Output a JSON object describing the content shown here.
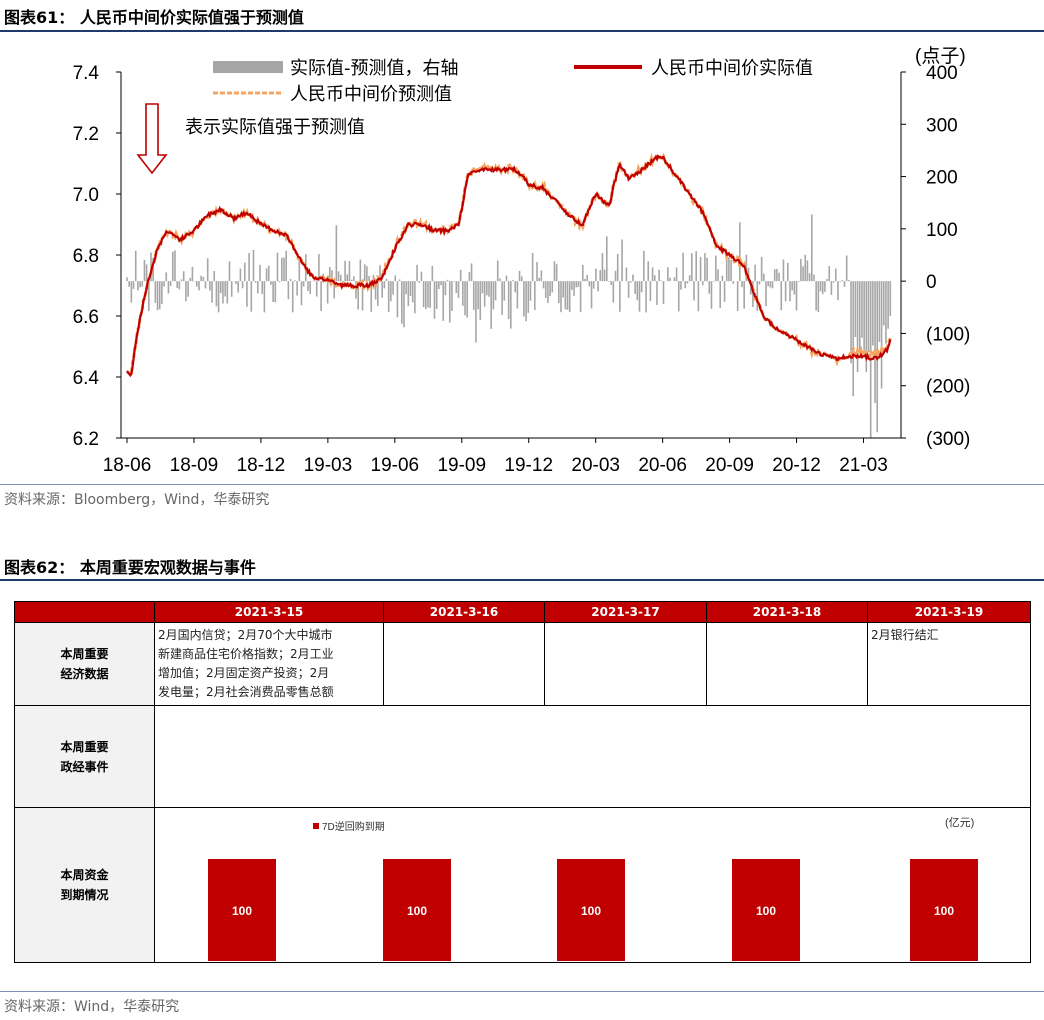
{
  "figure1": {
    "title": "图表61： 人民币中间价实际值强于预测值",
    "source": "资料来源：Bloomberg，Wind，华泰研究",
    "annotation": "表示实际值强于预测值",
    "chart_data": {
      "type": "line",
      "series": [
        {
          "name": "实际值-预测值，右轴",
          "type": "bar",
          "axis": "right",
          "color": "#a6a6a6"
        },
        {
          "name": "人民币中间价实际值",
          "type": "line",
          "axis": "left",
          "color": "#c00000"
        },
        {
          "name": "人民币中间价预测值",
          "type": "line",
          "axis": "left",
          "color": "#f4a460",
          "style": "dashed"
        }
      ],
      "x_ticks": [
        "18-06",
        "18-09",
        "18-12",
        "19-03",
        "19-06",
        "19-09",
        "19-12",
        "20-03",
        "20-06",
        "20-09",
        "20-12",
        "21-03"
      ],
      "y_left_ticks": [
        "6.2",
        "6.4",
        "6.6",
        "6.8",
        "7.0",
        "7.2",
        "7.4"
      ],
      "y_right_ticks": [
        "(300)",
        "(200)",
        "(100)",
        "0",
        "100",
        "200",
        "300",
        "400"
      ],
      "y_right_unit": "(点子)",
      "ylim_left": [
        6.2,
        7.4
      ],
      "ylim_right": [
        -300,
        400
      ],
      "actual_keypoints": [
        [
          0,
          6.42
        ],
        [
          0.06,
          6.4
        ],
        [
          0.12,
          6.5
        ],
        [
          0.2,
          6.6
        ],
        [
          0.3,
          6.7
        ],
        [
          0.45,
          6.82
        ],
        [
          0.6,
          6.88
        ],
        [
          0.8,
          6.85
        ],
        [
          1.0,
          6.88
        ],
        [
          1.2,
          6.93
        ],
        [
          1.4,
          6.95
        ],
        [
          1.6,
          6.92
        ],
        [
          1.8,
          6.94
        ],
        [
          2.0,
          6.9
        ],
        [
          2.2,
          6.88
        ],
        [
          2.4,
          6.86
        ],
        [
          2.6,
          6.78
        ],
        [
          2.8,
          6.72
        ],
        [
          3.0,
          6.72
        ],
        [
          3.2,
          6.7
        ],
        [
          3.4,
          6.7
        ],
        [
          3.6,
          6.7
        ],
        [
          3.8,
          6.72
        ],
        [
          4.0,
          6.82
        ],
        [
          4.2,
          6.9
        ],
        [
          4.4,
          6.9
        ],
        [
          4.6,
          6.88
        ],
        [
          4.8,
          6.88
        ],
        [
          4.95,
          6.9
        ],
        [
          5.0,
          6.95
        ],
        [
          5.1,
          7.07
        ],
        [
          5.4,
          7.08
        ],
        [
          5.8,
          7.08
        ],
        [
          5.95,
          7.05
        ],
        [
          6.0,
          7.03
        ],
        [
          6.2,
          7.02
        ],
        [
          6.4,
          6.98
        ],
        [
          6.6,
          6.93
        ],
        [
          6.8,
          6.9
        ],
        [
          7.0,
          7.0
        ],
        [
          7.2,
          6.96
        ],
        [
          7.35,
          7.1
        ],
        [
          7.5,
          7.05
        ],
        [
          7.7,
          7.08
        ],
        [
          7.9,
          7.12
        ],
        [
          8.0,
          7.12
        ],
        [
          8.2,
          7.06
        ],
        [
          8.4,
          7.0
        ],
        [
          8.6,
          6.94
        ],
        [
          8.8,
          6.83
        ],
        [
          9.0,
          6.8
        ],
        [
          9.2,
          6.77
        ],
        [
          9.5,
          6.6
        ],
        [
          9.7,
          6.56
        ],
        [
          10.0,
          6.52
        ],
        [
          10.3,
          6.48
        ],
        [
          10.6,
          6.46
        ],
        [
          10.9,
          6.47
        ],
        [
          11.2,
          6.46
        ],
        [
          11.35,
          6.49
        ],
        [
          11.4,
          6.52
        ]
      ]
    }
  },
  "figure2": {
    "title": "图表62： 本周重要宏观数据与事件",
    "source": "资料来源：Wind，华泰研究",
    "dates": [
      "2021-3-15",
      "2021-3-16",
      "2021-3-17",
      "2021-3-18",
      "2021-3-19"
    ],
    "row_econ_label_line1": "本周重要",
    "row_econ_label_line2": "经济数据",
    "row_policy_label_line1": "本周重要",
    "row_policy_label_line2": "政经事件",
    "row_fund_label_line1": "本周资金",
    "row_fund_label_line2": "到期情况",
    "econ_0315_line1": "2月国内信贷；2月70个大中城市",
    "econ_0315_line2": "新建商品住宅价格指数；2月工业",
    "econ_0315_line3": "增加值；2月固定资产投资；2月",
    "econ_0315_line4": "发电量；2月社会消费品零售总额",
    "econ_0319": "2月银行结汇",
    "fund_chart": {
      "type": "bar",
      "series_name": "7D逆回购到期",
      "unit": "(亿元)",
      "values": [
        100,
        100,
        100,
        100,
        100
      ],
      "color": "#c00000"
    }
  }
}
